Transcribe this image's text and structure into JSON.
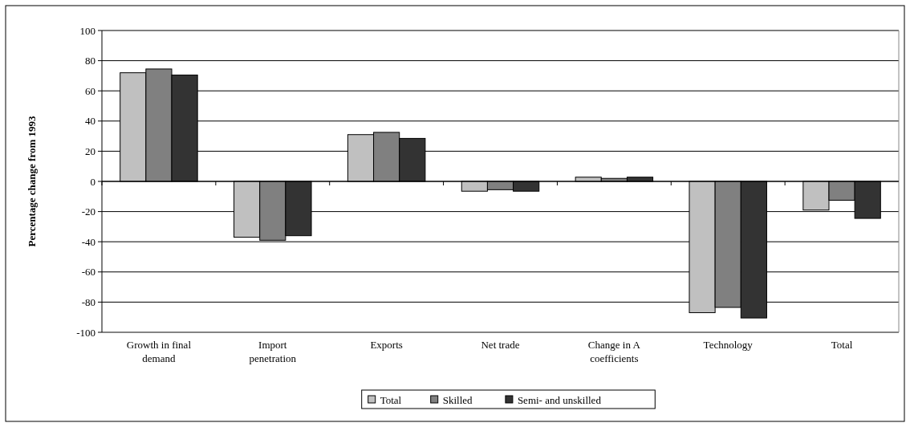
{
  "chart_data": {
    "type": "bar",
    "ylabel": "Percentage change from 1993",
    "categories": [
      "Growth in final demand",
      "Import penetration",
      "Exports",
      "Net trade",
      "Change in A coefficients",
      "Technology",
      "Total"
    ],
    "series": [
      {
        "name": "Total",
        "color": "#c0c0c0",
        "values": [
          72,
          -37,
          31,
          -6.5,
          2.8,
          -87,
          -19
        ]
      },
      {
        "name": "Skilled",
        "color": "#808080",
        "values": [
          74.5,
          -39,
          32.5,
          -5.5,
          2,
          -83.5,
          -12.5
        ]
      },
      {
        "name": "Semi- and unskilled",
        "color": "#333333",
        "values": [
          70.5,
          -36,
          28.5,
          -6.5,
          2.8,
          -90.5,
          -24.5
        ]
      }
    ],
    "ylim": [
      -100,
      100
    ],
    "yticks": [
      -100,
      -80,
      -60,
      -40,
      -20,
      0,
      20,
      40,
      60,
      80,
      100
    ],
    "grid": "y",
    "legend": "bottom"
  }
}
